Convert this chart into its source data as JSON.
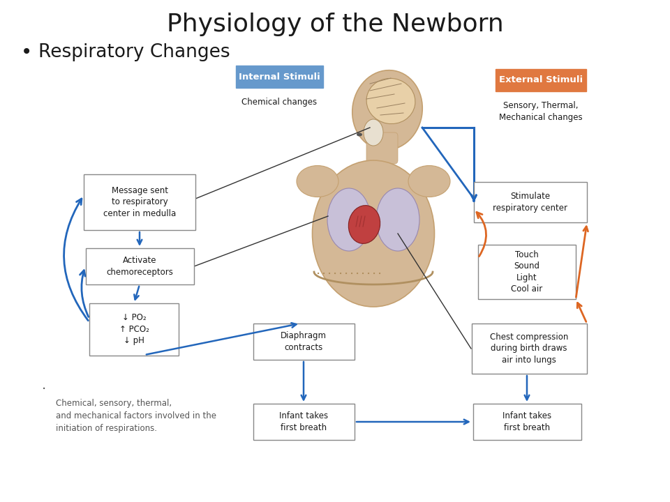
{
  "title": "Physiology of the Newborn",
  "bullet": "Respiratory Changes",
  "bg_color": "#ffffff",
  "title_fontsize": 26,
  "bullet_fontsize": 19,
  "internal_stimuli_label": "Internal Stimuli",
  "internal_stimuli_sub": "Chemical changes",
  "external_stimuli_label": "External Stimuli",
  "external_stimuli_sub": "Sensory, Thermal,\nMechanical changes",
  "internal_box_color": "#6699cc",
  "external_box_color": "#e07840",
  "blue": "#2266bb",
  "orange": "#dd6622",
  "box_ec": "#888888",
  "caption": "Chemical, sensory, thermal,\nand mechanical factors involved in the\ninitiation of respirations.",
  "skin_color": "#d4b896",
  "skin_dark": "#c4a070",
  "brain_color": "#e8d0a8",
  "lung_color": "#c8c0d8",
  "heart_color": "#c04040",
  "diaphragm_color": "#b09060"
}
